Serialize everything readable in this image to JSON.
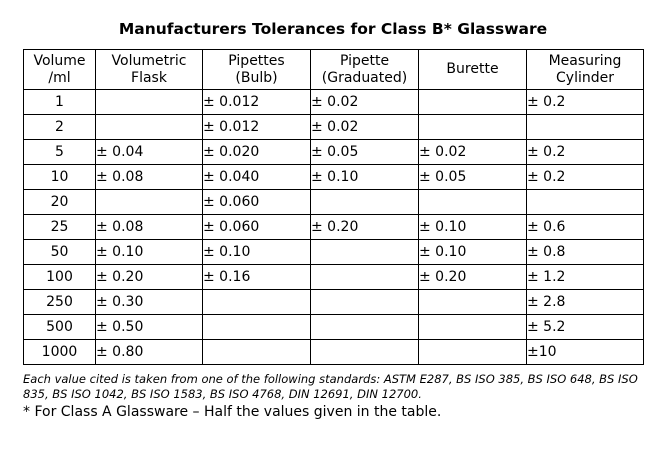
{
  "title": "Manufacturers Tolerances for Class B* Glassware",
  "headers": [
    [
      "Volume",
      "/ml"
    ],
    [
      "Volumetric",
      "Flask"
    ],
    [
      "Pipettes",
      "(Bulb)"
    ],
    [
      "Pipette",
      "(Graduated)"
    ],
    [
      "Burette",
      ""
    ],
    [
      "Measuring",
      "Cylinder"
    ]
  ],
  "rows": [
    [
      "1",
      "",
      "± 0.012",
      "± 0.02",
      "",
      "±  0.2"
    ],
    [
      "2",
      "",
      "± 0.012",
      "± 0.02",
      "",
      ""
    ],
    [
      "5",
      "± 0.04",
      "± 0.020",
      "± 0.05",
      "± 0.02",
      "±  0.2"
    ],
    [
      "10",
      "± 0.08",
      "± 0.040",
      "± 0.10",
      "± 0.05",
      "±  0.2"
    ],
    [
      "20",
      "",
      "± 0.060",
      "",
      "",
      ""
    ],
    [
      "25",
      "± 0.08",
      "± 0.060",
      "± 0.20",
      "± 0.10",
      "±  0.6"
    ],
    [
      "50",
      "± 0.10",
      "± 0.10",
      "",
      "± 0.10",
      "±  0.8"
    ],
    [
      "100",
      "± 0.20",
      "± 0.16",
      "",
      "± 0.20",
      "±  1.2"
    ],
    [
      "250",
      "± 0.30",
      "",
      "",
      "",
      "±  2.8"
    ],
    [
      "500",
      "± 0.50",
      "",
      "",
      "",
      "±  5.2"
    ],
    [
      "1000",
      "± 0.80",
      "",
      "",
      "",
      "±10"
    ]
  ],
  "standards_note": "Each value cited is taken from one of the following standards: ASTM E287, BS ISO 385, BS ISO 648, BS ISO 835, BS ISO 1042, BS ISO 1583, BS ISO 4768, DIN 12691, DIN 12700.",
  "footnote": "* For Class A Glassware – Half the values given in the table."
}
